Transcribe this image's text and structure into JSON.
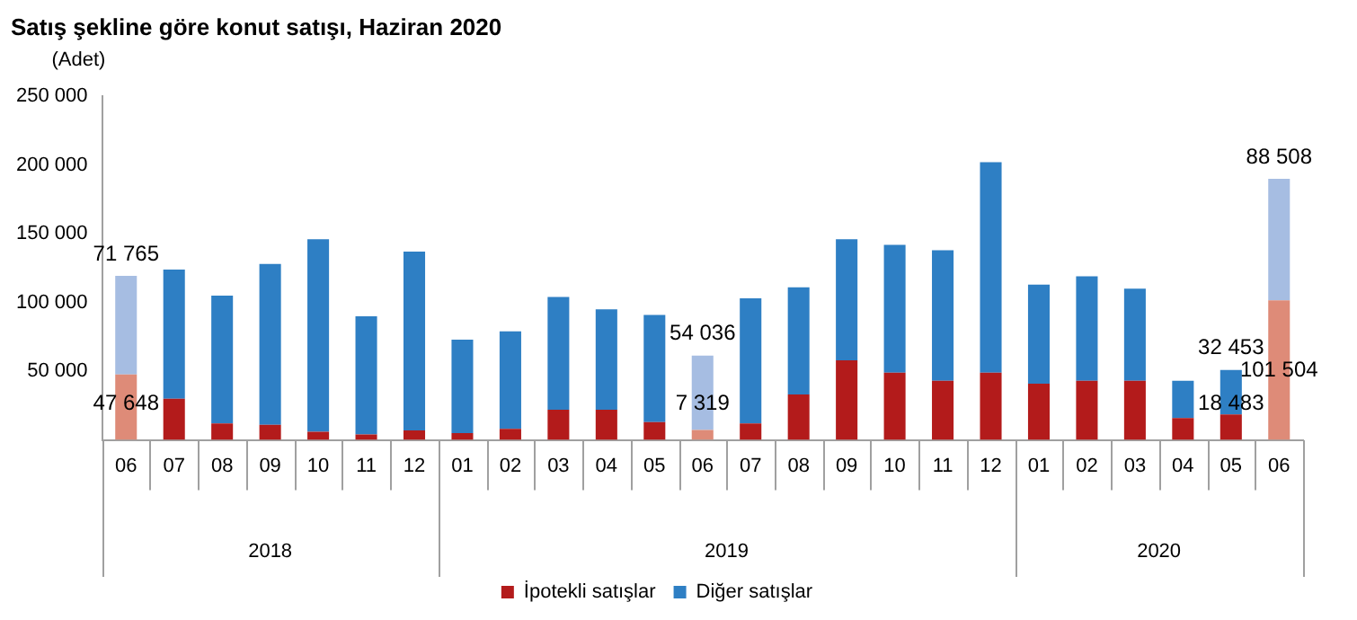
{
  "chart_data": {
    "type": "bar",
    "title": "Satış şekline göre konut satışı, Haziran 2020",
    "ylabel": "(Adet)",
    "categories": [
      "06",
      "07",
      "08",
      "09",
      "10",
      "11",
      "12",
      "01",
      "02",
      "03",
      "04",
      "05",
      "06",
      "07",
      "08",
      "09",
      "10",
      "11",
      "12",
      "01",
      "02",
      "03",
      "04",
      "05",
      "06"
    ],
    "annotations": [
      "2018",
      "2019",
      "2020"
    ],
    "stacked": true,
    "series": [
      {
        "name": "İpotekli satışlar",
        "color": "#b31b1b",
        "colors": [
          "#de8b78",
          "#b31b1b",
          "#b31b1b",
          "#b31b1b",
          "#b31b1b",
          "#b31b1b",
          "#b31b1b",
          "#b31b1b",
          "#b31b1b",
          "#b31b1b",
          "#b31b1b",
          "#b31b1b",
          "#de8b78",
          "#b31b1b",
          "#b31b1b",
          "#b31b1b",
          "#b31b1b",
          "#b31b1b",
          "#b31b1b",
          "#b31b1b",
          "#b31b1b",
          "#b31b1b",
          "#b31b1b",
          "#b31b1b",
          "#de8b78"
        ],
        "values": [
          47648,
          30000,
          12000,
          11000,
          6000,
          4000,
          7000,
          5000,
          8000,
          22000,
          22000,
          13000,
          7319,
          12000,
          33000,
          58000,
          49000,
          43000,
          49000,
          41000,
          43000,
          43000,
          16000,
          18483,
          101504
        ],
        "value_labels": [
          "47 648",
          null,
          null,
          null,
          null,
          null,
          null,
          null,
          null,
          null,
          null,
          null,
          "7 319",
          null,
          null,
          null,
          null,
          null,
          null,
          null,
          null,
          null,
          null,
          "18 483",
          "101 504"
        ]
      },
      {
        "name": "Diğer satışlar",
        "color": "#2e7fc4",
        "colors": [
          "#a6bde2",
          "#2e7fc4",
          "#2e7fc4",
          "#2e7fc4",
          "#2e7fc4",
          "#2e7fc4",
          "#2e7fc4",
          "#2e7fc4",
          "#2e7fc4",
          "#2e7fc4",
          "#2e7fc4",
          "#2e7fc4",
          "#a6bde2",
          "#2e7fc4",
          "#2e7fc4",
          "#2e7fc4",
          "#2e7fc4",
          "#2e7fc4",
          "#2e7fc4",
          "#2e7fc4",
          "#2e7fc4",
          "#2e7fc4",
          "#2e7fc4",
          "#2e7fc4",
          "#a6bde2"
        ],
        "values": [
          71765,
          94000,
          93000,
          117000,
          140000,
          86000,
          130000,
          68000,
          71000,
          82000,
          73000,
          78000,
          54036,
          91000,
          78000,
          88000,
          93000,
          95000,
          153000,
          72000,
          76000,
          67000,
          27000,
          32453,
          88508
        ],
        "value_labels": [
          "71 765",
          null,
          null,
          null,
          null,
          null,
          null,
          null,
          null,
          null,
          null,
          null,
          "54 036",
          null,
          null,
          null,
          null,
          null,
          null,
          null,
          null,
          null,
          null,
          "32 453",
          "88 508"
        ]
      }
    ],
    "ylim": [
      0,
      250000
    ],
    "yticks": [
      {
        "value": 0,
        "label": null
      },
      {
        "value": 50000,
        "label": "50 000"
      },
      {
        "value": 100000,
        "label": "100 000"
      },
      {
        "value": 150000,
        "label": "150 000"
      },
      {
        "value": 200000,
        "label": "200 000"
      },
      {
        "value": 250000,
        "label": "250 000"
      }
    ],
    "grid": false,
    "legend": "bottom"
  }
}
